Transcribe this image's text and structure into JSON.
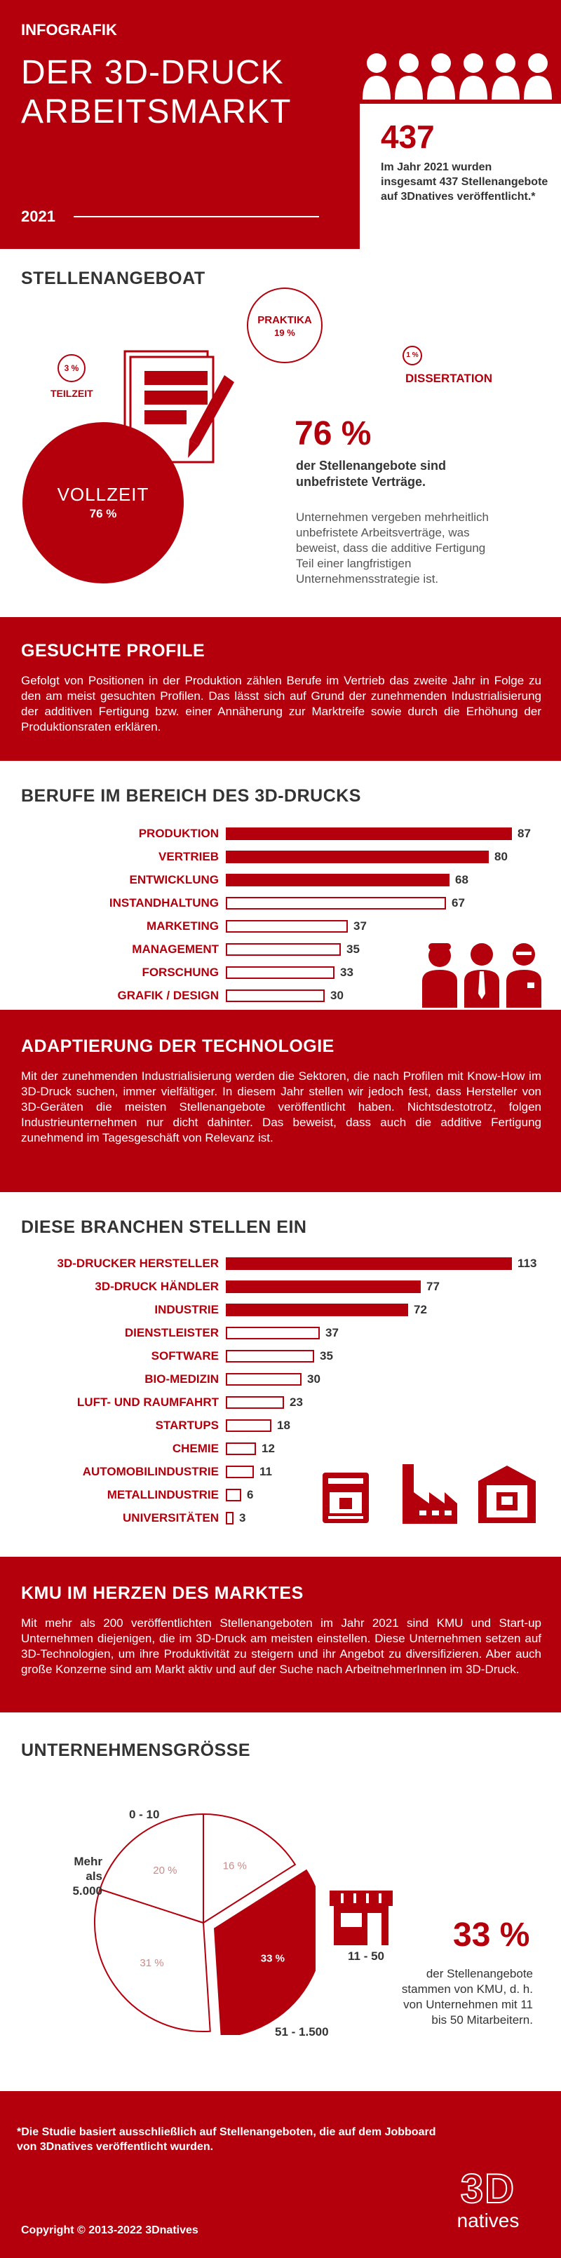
{
  "header": {
    "kicker": "INFOGRAFIK",
    "title_line1": "DER 3D-DRUCK",
    "title_line2": "ARBEITSMARKT",
    "year": "2021",
    "stat_number": "437",
    "stat_text": "Im Jahr 2021 wurden insgesamt 437 Stellenangebote auf 3Dnatives veröffentlicht.*"
  },
  "offers": {
    "title": "STELLENANGEBOAT",
    "praktika_label": "PRAKTIKA",
    "praktika_pct": "19 %",
    "teilzeit_label": "TEILZEIT",
    "teilzeit_pct": "3 %",
    "dissertation_label": "DISSERTATION",
    "dissertation_pct": "1 %",
    "vollzeit_label": "VOLLZEIT",
    "vollzeit_pct": "76 %",
    "big_pct": "76 %",
    "big_caption": "der Stellenangebote sind unbefristete Verträge.",
    "body": "Unternehmen vergeben mehrheitlich unbefristete Arbeitsverträge, was beweist, dass die additive Fertigung Teil einer langfristigen Unternehmensstrategie ist."
  },
  "profiles": {
    "title": "GESUCHTE PROFILE",
    "body": "Gefolgt von Positionen in der Produktion zählen Berufe im Vertrieb das zweite Jahr in Folge zu den am meist gesuchten Profilen. Das lässt sich auf Grund der zunehmenden Industrialisierung der additiven Fertigung bzw. einer Annäherung zur Marktreife sowie  durch die Erhöhung der Produktionsraten erklären."
  },
  "jobs": {
    "title": "BERUFE IM BEREICH DES 3D-DRUCKS",
    "rows": [
      {
        "label": "PRODUKTION",
        "value": "87"
      },
      {
        "label": "VERTRIEB",
        "value": "80"
      },
      {
        "label": "ENTWICKLUNG",
        "value": "68"
      },
      {
        "label": "INSTANDHALTUNG",
        "value": "67"
      },
      {
        "label": "MARKETING",
        "value": "37"
      },
      {
        "label": "MANAGEMENT",
        "value": "35"
      },
      {
        "label": "FORSCHUNG",
        "value": "33"
      },
      {
        "label": "GRAFIK / DESIGN",
        "value": "30"
      }
    ]
  },
  "adoption": {
    "title": "ADAPTIERUNG DER TECHNOLOGIE",
    "body": "Mit der zunehmenden Industrialisierung werden die Sektoren, die nach Profilen mit Know-How im 3D-Druck suchen, immer vielfältiger. In diesem Jahr stellen wir jedoch fest, dass Hersteller von 3D-Geräten die meisten Stellenangebote veröffentlicht haben. Nichtsdestotrotz, folgen Industrieunternehmen nur dicht dahinter. Das beweist, dass auch die additive Fertigung zunehmend im Tagesgeschäft von Relevanz ist."
  },
  "industries": {
    "title": "DIESE BRANCHEN STELLEN EIN",
    "rows": [
      {
        "label": "3D-DRUCKER HERSTELLER",
        "value": "113"
      },
      {
        "label": "3D-DRUCK HÄNDLER",
        "value": "77"
      },
      {
        "label": "INDUSTRIE",
        "value": "72"
      },
      {
        "label": "DIENSTLEISTER",
        "value": "37"
      },
      {
        "label": "SOFTWARE",
        "value": "35"
      },
      {
        "label": "BIO-MEDIZIN",
        "value": "30"
      },
      {
        "label": "LUFT- UND RAUMFAHRT",
        "value": "23"
      },
      {
        "label": "STARTUPS",
        "value": "18"
      },
      {
        "label": "CHEMIE",
        "value": "12"
      },
      {
        "label": "AUTOMOBILINDUSTRIE",
        "value": "11"
      },
      {
        "label": "METALLINDUSTRIE",
        "value": "6"
      },
      {
        "label": "UNIVERSITÄTEN",
        "value": "3"
      }
    ]
  },
  "kmu": {
    "title": "KMU IM HERZEN DES MARKTES",
    "body": "Mit mehr als 200 veröffentlichten Stellenangeboten im Jahr 2021 sind KMU und Start-up Unternehmen diejenigen, die im 3D-Druck am meisten einstellen. Diese Unternehmen setzen auf 3D-Technologien, um ihre Produktivität zu steigern und ihr Angebot zu diversifizieren. Aber auch große Konzerne sind am Markt aktiv und auf der Suche nach ArbeitnehmerInnen im 3D-Druck."
  },
  "size": {
    "title": "UNTERNEHMENSGRÖSSE",
    "slices": [
      {
        "label": "0 - 10",
        "pct": "16 %"
      },
      {
        "label": "11 - 50",
        "pct": "33 %"
      },
      {
        "label": "51 - 1.500",
        "pct": "31 %"
      },
      {
        "label": "Mehr als 5.000",
        "pct": "20 %"
      }
    ],
    "big_pct": "33 %",
    "caption": "der Stellenangebote stammen von KMU, d. h. von Unternehmen mit 11 bis 50 Mitarbeitern."
  },
  "footer": {
    "note": "*Die Studie basiert ausschließlich auf Stellenangeboten, die auf dem Jobboard von 3Dnatives veröffentlicht wurden.",
    "copyright": "Copyright © 2013-2022 3Dnatives",
    "logo_top": "3D",
    "logo_bottom": "natives"
  },
  "colors": {
    "accent": "#b3000c",
    "text": "#333333"
  }
}
